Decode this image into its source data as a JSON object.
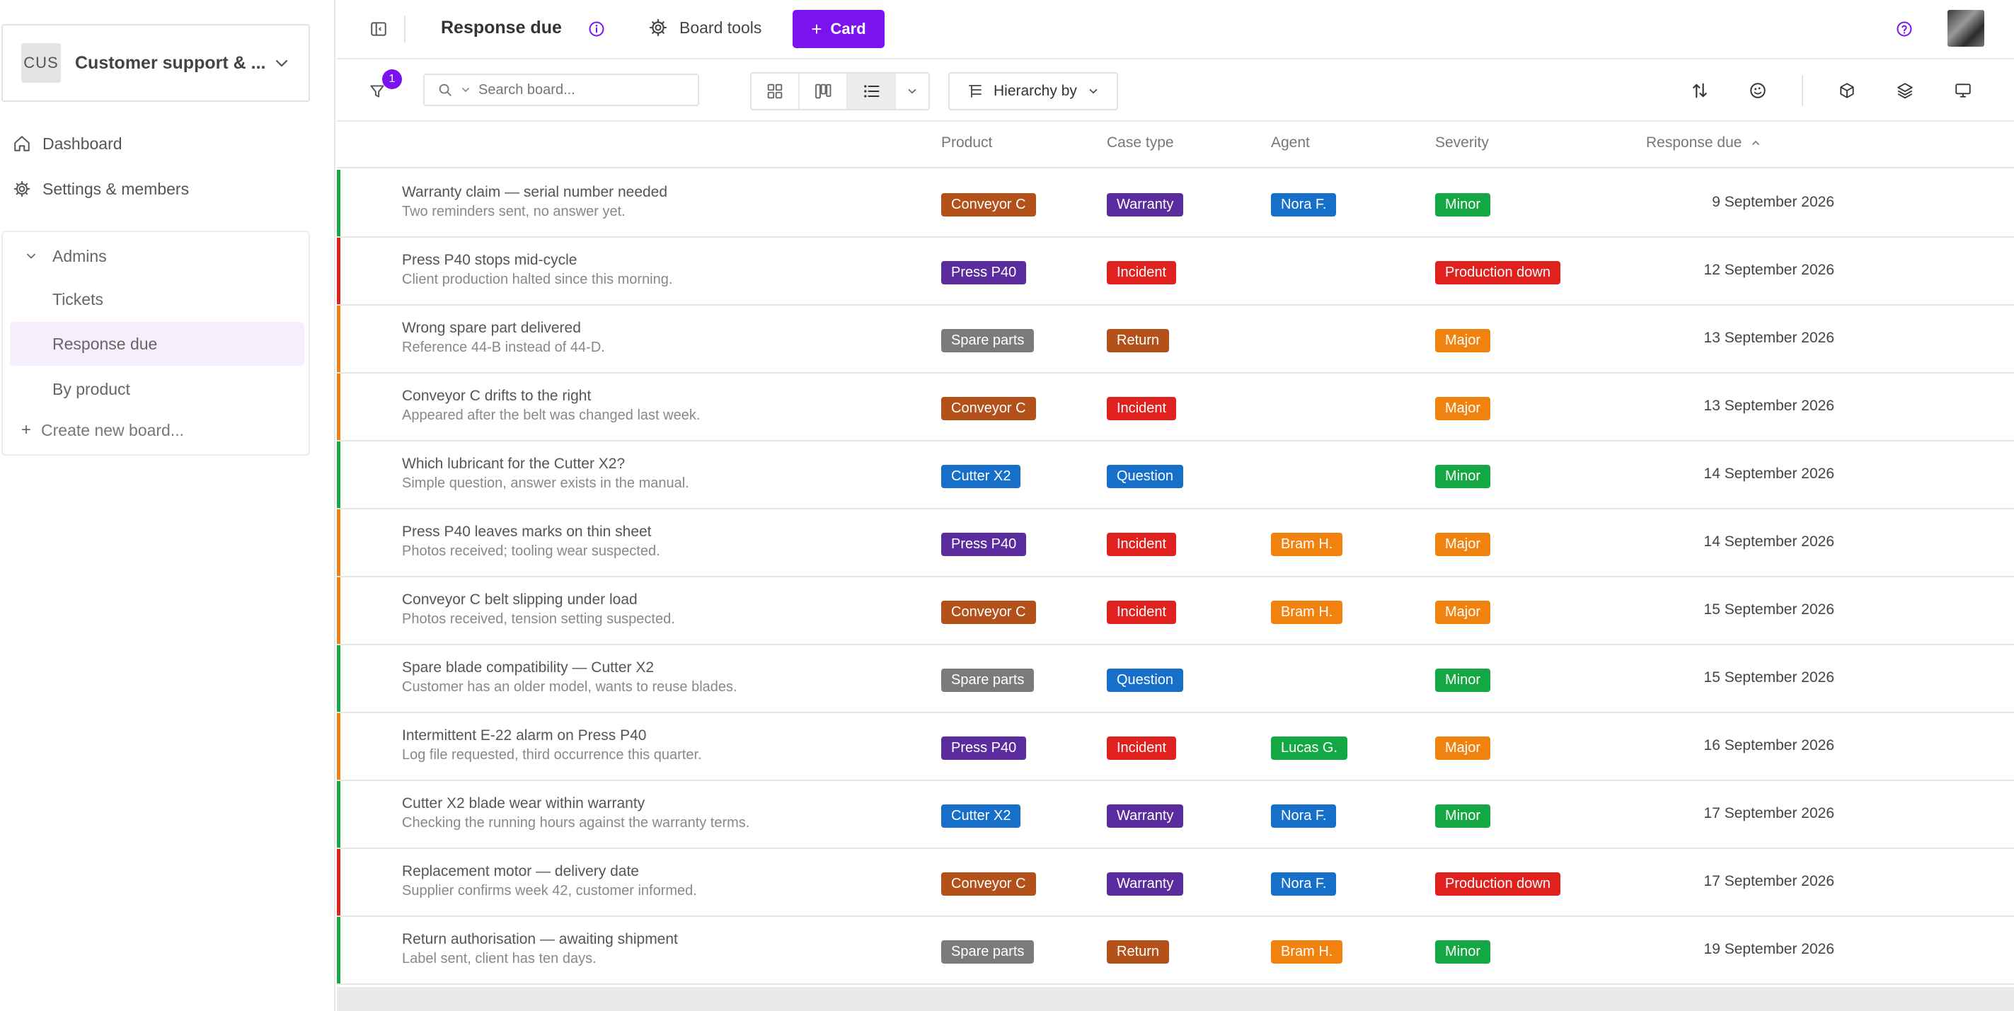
{
  "sidebar": {
    "workspace": {
      "avatar": "CUS",
      "name": "Customer support & ..."
    },
    "nav": [
      {
        "label": "Dashboard",
        "icon": "home-icon"
      },
      {
        "label": "Settings & members",
        "icon": "gear-icon"
      }
    ],
    "group": {
      "label": "Admins",
      "expanded": true
    },
    "boards": [
      {
        "label": "Tickets",
        "active": false
      },
      {
        "label": "Response due",
        "active": true
      },
      {
        "label": "By product",
        "active": false
      }
    ],
    "create_label": "Create new board..."
  },
  "topbar": {
    "title": "Response due",
    "board_tools": "Board tools",
    "card_button": "Card"
  },
  "toolbar": {
    "filter_count": "1",
    "search_placeholder": "Search board...",
    "hierarchy_label": "Hierarchy by"
  },
  "columns": {
    "product": "Product",
    "case_type": "Case type",
    "agent": "Agent",
    "severity": "Severity",
    "response_due": "Response due"
  },
  "colors": {
    "accent": "#7b12f0",
    "green": "#14a844",
    "red": "#e0211d",
    "orange": "#f2820f",
    "conveyor": "#b4501a",
    "press": "#5a2c9e",
    "spare": "#7b7b7b",
    "cutter": "#1670c9",
    "warranty": "#5a2c9e",
    "incident": "#e0211d",
    "return": "#b4501a",
    "question": "#1670c9",
    "nora": "#1670c9",
    "bram": "#f2820f",
    "lucas": "#14a844",
    "minor": "#14a844",
    "major": "#f2820f",
    "production_down": "#e0211d"
  },
  "rows": [
    {
      "title": "Warranty claim — serial number needed",
      "desc": "Two reminders sent, no answer yet.",
      "status": "green",
      "product": "Conveyor C",
      "product_color": "conveyor",
      "case_type": "Warranty",
      "case_color": "warranty",
      "agent": "Nora F.",
      "agent_color": "nora",
      "severity": "Minor",
      "severity_color": "minor",
      "due": "9 September 2026"
    },
    {
      "title": "Press P40 stops mid-cycle",
      "desc": "Client production halted since this morning.",
      "status": "red",
      "product": "Press P40",
      "product_color": "press",
      "case_type": "Incident",
      "case_color": "incident",
      "agent": "",
      "agent_color": "",
      "severity": "Production down",
      "severity_color": "production_down",
      "due": "12 September 2026"
    },
    {
      "title": "Wrong spare part delivered",
      "desc": "Reference 44-B instead of 44-D.",
      "status": "orange",
      "product": "Spare parts",
      "product_color": "spare",
      "case_type": "Return",
      "case_color": "return",
      "agent": "",
      "agent_color": "",
      "severity": "Major",
      "severity_color": "major",
      "due": "13 September 2026"
    },
    {
      "title": "Conveyor C drifts to the right",
      "desc": "Appeared after the belt was changed last week.",
      "status": "orange",
      "product": "Conveyor C",
      "product_color": "conveyor",
      "case_type": "Incident",
      "case_color": "incident",
      "agent": "",
      "agent_color": "",
      "severity": "Major",
      "severity_color": "major",
      "due": "13 September 2026"
    },
    {
      "title": "Which lubricant for the Cutter X2?",
      "desc": "Simple question, answer exists in the manual.",
      "status": "green",
      "product": "Cutter X2",
      "product_color": "cutter",
      "case_type": "Question",
      "case_color": "question",
      "agent": "",
      "agent_color": "",
      "severity": "Minor",
      "severity_color": "minor",
      "due": "14 September 2026"
    },
    {
      "title": "Press P40 leaves marks on thin sheet",
      "desc": "Photos received; tooling wear suspected.",
      "status": "orange",
      "product": "Press P40",
      "product_color": "press",
      "case_type": "Incident",
      "case_color": "incident",
      "agent": "Bram H.",
      "agent_color": "bram",
      "severity": "Major",
      "severity_color": "major",
      "due": "14 September 2026"
    },
    {
      "title": "Conveyor C belt slipping under load",
      "desc": "Photos received, tension setting suspected.",
      "status": "orange",
      "product": "Conveyor C",
      "product_color": "conveyor",
      "case_type": "Incident",
      "case_color": "incident",
      "agent": "Bram H.",
      "agent_color": "bram",
      "severity": "Major",
      "severity_color": "major",
      "due": "15 September 2026"
    },
    {
      "title": "Spare blade compatibility — Cutter X2",
      "desc": "Customer has an older model, wants to reuse blades.",
      "status": "green",
      "product": "Spare parts",
      "product_color": "spare",
      "case_type": "Question",
      "case_color": "question",
      "agent": "",
      "agent_color": "",
      "severity": "Minor",
      "severity_color": "minor",
      "due": "15 September 2026"
    },
    {
      "title": "Intermittent E-22 alarm on Press P40",
      "desc": "Log file requested, third occurrence this quarter.",
      "status": "orange",
      "product": "Press P40",
      "product_color": "press",
      "case_type": "Incident",
      "case_color": "incident",
      "agent": "Lucas G.",
      "agent_color": "lucas",
      "severity": "Major",
      "severity_color": "major",
      "due": "16 September 2026"
    },
    {
      "title": "Cutter X2 blade wear within warranty",
      "desc": "Checking the running hours against the warranty terms.",
      "status": "green",
      "product": "Cutter X2",
      "product_color": "cutter",
      "case_type": "Warranty",
      "case_color": "warranty",
      "agent": "Nora F.",
      "agent_color": "nora",
      "severity": "Minor",
      "severity_color": "minor",
      "due": "17 September 2026"
    },
    {
      "title": "Replacement motor — delivery date",
      "desc": "Supplier confirms week 42, customer informed.",
      "status": "red",
      "product": "Conveyor C",
      "product_color": "conveyor",
      "case_type": "Warranty",
      "case_color": "warranty",
      "agent": "Nora F.",
      "agent_color": "nora",
      "severity": "Production down",
      "severity_color": "production_down",
      "due": "17 September 2026"
    },
    {
      "title": "Return authorisation — awaiting shipment",
      "desc": "Label sent, client has ten days.",
      "status": "green",
      "product": "Spare parts",
      "product_color": "spare",
      "case_type": "Return",
      "case_color": "return",
      "agent": "Bram H.",
      "agent_color": "bram",
      "severity": "Minor",
      "severity_color": "minor",
      "due": "19 September 2026"
    }
  ]
}
